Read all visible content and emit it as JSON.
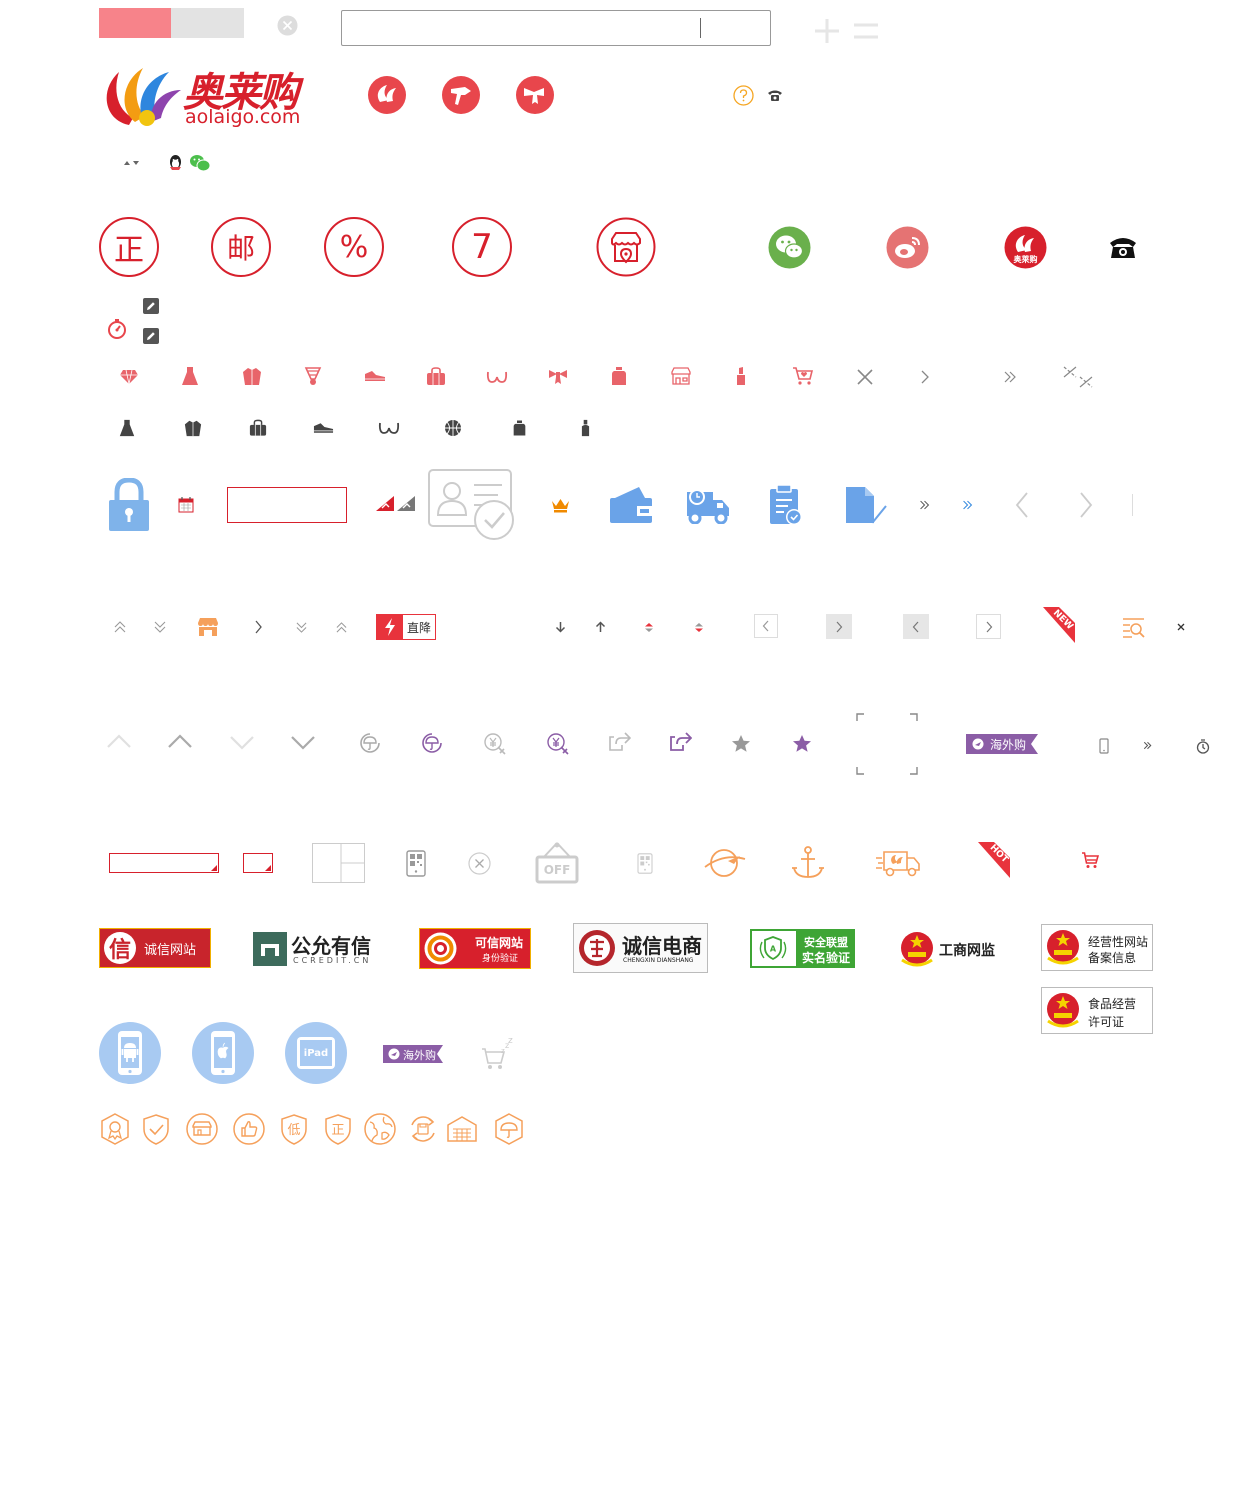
{
  "brand": {
    "name": "奥莱购",
    "domain": "aolaigo.com",
    "colors": {
      "red": "#d7202c",
      "pink": "#f7838a",
      "gray": "#e3e3e3",
      "orange": "#f5a623",
      "blue": "#6aa3e8",
      "purple": "#8b5da6",
      "green": "#5cb85c"
    }
  },
  "circle_badges": [
    "正",
    "邮",
    "%",
    "7"
  ],
  "tags": {
    "drop": "直降",
    "new": "NEW",
    "hot": "HOT",
    "overseas": "海外购",
    "off": "OFF"
  },
  "certs": {
    "chengxin_site": {
      "char": "信",
      "label": "诚信网站"
    },
    "ccredit": {
      "title": "公允有信",
      "sub": "CCREDIT.CN"
    },
    "kexin": {
      "title": "可信网站",
      "sub": "身份验证"
    },
    "chengxin_ds": {
      "title": "诚信电商",
      "sub": "CHENGXIN DIANSHANG"
    },
    "anquan": {
      "line1": "安全联盟",
      "line2": "实名验证"
    },
    "gongshang": {
      "label": "工商网监"
    },
    "jingying": {
      "line1": "经营性网站",
      "line2": "备案信息"
    },
    "shipin": {
      "line1": "食品经营",
      "line2": "许可证"
    }
  },
  "devices": {
    "ipad": "iPad"
  },
  "guarantees": [
    "低",
    "正"
  ]
}
